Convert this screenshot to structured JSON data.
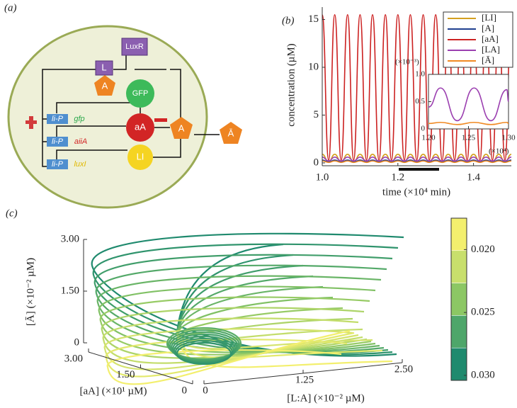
{
  "diagram": {
    "label": "(a)",
    "luxr": "LuxR",
    "l": "L",
    "a_inside": "A",
    "gfp_protein": "GFP",
    "aa": "aA",
    "li": "LI",
    "a_cell": "A",
    "a_bar": "Ā",
    "promoters": [
      "li-P",
      "li-P",
      "li-P"
    ],
    "genes": [
      "gfp",
      "aiiA",
      "luxI"
    ]
  },
  "chart_data": [
    {
      "type": "line",
      "label": "(b)",
      "xlabel": "time (×10⁴ min)",
      "ylabel": "concentration (µM)",
      "x": [
        1.0,
        1.017,
        1.033,
        1.05,
        1.067,
        1.083,
        1.1,
        1.117,
        1.133,
        1.15,
        1.167,
        1.183,
        1.2,
        1.217,
        1.233,
        1.25,
        1.267,
        1.283,
        1.3,
        1.317,
        1.333,
        1.35,
        1.367,
        1.383,
        1.4,
        1.417,
        1.433,
        1.45,
        1.467,
        1.483,
        1.5
      ],
      "xlim": [
        1.0,
        1.5
      ],
      "xticks": [
        {
          "value": 1.0,
          "label": "1.0"
        },
        1.2,
        1.4
      ],
      "ylim": [
        -0.3,
        16.3
      ],
      "yticks": [
        0,
        5,
        10,
        15
      ],
      "legend": "upper right",
      "series": [
        {
          "name": "[LI]",
          "color": "#d4a020",
          "values": [
            0.9,
            0.1,
            0.9,
            0.1,
            0.9,
            0.1,
            0.9,
            0.1,
            0.9,
            0.1,
            0.9,
            0.1,
            0.9,
            0.1,
            0.9,
            0.1,
            0.9,
            0.1,
            0.9,
            0.1,
            0.9,
            0.1,
            0.9,
            0.1,
            0.9,
            0.1,
            0.9,
            0.1,
            0.9,
            0.1,
            0.9
          ]
        },
        {
          "name": "[A]",
          "color": "#1f3f8f",
          "values": [
            0.3,
            0.1,
            0.3,
            0.1,
            0.3,
            0.1,
            0.3,
            0.1,
            0.3,
            0.1,
            0.3,
            0.1,
            0.3,
            0.1,
            0.3,
            0.1,
            0.3,
            0.1,
            0.3,
            0.1,
            0.3,
            0.1,
            0.3,
            0.1,
            0.3,
            0.1,
            0.3,
            0.1,
            0.3,
            0.1,
            0.3
          ]
        },
        {
          "name": "[aA]",
          "color": "#cc2222",
          "values": [
            15.5,
            0.3,
            15.5,
            0.3,
            15.5,
            0.3,
            15.5,
            0.3,
            15.5,
            0.3,
            15.5,
            0.3,
            15.5,
            0.3,
            15.5,
            0.3,
            15.5,
            0.3,
            15.5,
            0.3,
            15.5,
            0.3,
            15.5,
            0.3,
            15.5,
            0.3,
            15.5,
            0.3,
            15.5,
            0.3,
            15.5
          ]
        },
        {
          "name": "[LA]",
          "color": "#9b3fb0",
          "values": [
            0.6,
            0.2,
            0.6,
            0.2,
            0.6,
            0.2,
            0.6,
            0.2,
            0.6,
            0.2,
            0.6,
            0.2,
            0.6,
            0.2,
            0.6,
            0.2,
            0.6,
            0.2,
            0.6,
            0.2,
            0.6,
            0.2,
            0.6,
            0.2,
            0.6,
            0.2,
            0.6,
            0.2,
            0.6,
            0.2,
            0.6
          ]
        },
        {
          "name": "[Ā]",
          "color": "#f08a24",
          "values": [
            0.2,
            0.05,
            0.2,
            0.05,
            0.2,
            0.05,
            0.2,
            0.05,
            0.2,
            0.05,
            0.2,
            0.05,
            0.2,
            0.05,
            0.2,
            0.05,
            0.2,
            0.05,
            0.2,
            0.05,
            0.2,
            0.05,
            0.2,
            0.05,
            0.2,
            0.05,
            0.2,
            0.05,
            0.2,
            0.05,
            0.2
          ]
        }
      ]
    },
    {
      "type": "line",
      "xnote": "(×10⁴)",
      "ynote": "(×10⁻³)",
      "x": [
        1.2,
        1.215,
        1.236,
        1.257,
        1.278,
        1.298,
        1.3
      ],
      "xlim": [
        1.2,
        1.3
      ],
      "xticks": [
        {
          "value": 1.2,
          "label": "1.20"
        },
        1.25,
        {
          "value": 1.3,
          "label": "1.30"
        }
      ],
      "ylim": [
        0,
        1.0
      ],
      "yticks": [
        0,
        0.5,
        {
          "value": 1.0,
          "label": "1.0"
        }
      ],
      "series": [
        {
          "color": "#9b3fb0",
          "values": [
            0.4,
            0.75,
            0.15,
            0.75,
            0.15,
            0.72,
            0.5
          ]
        },
        {
          "color": "#f08a24",
          "values": [
            0.1,
            0.12,
            0.08,
            0.12,
            0.08,
            0.12,
            0.1
          ]
        }
      ]
    },
    {
      "type": "line3d",
      "label": "(c)",
      "xlabel": "[L:A] (×10⁻² µM)",
      "ylabel": "[aA] (×10¹ µM)",
      "zlabel": "[Ā] (×10⁻² µM)",
      "xlim": [
        0,
        2.5
      ],
      "xticks": [
        0,
        1.25,
        {
          "value": 2.5,
          "label": "2.50"
        }
      ],
      "ylim": [
        0,
        3
      ],
      "yticks": [
        0,
        {
          "value": 1.5,
          "label": "1.50"
        },
        {
          "value": 3,
          "label": "3.00"
        }
      ],
      "zlim": [
        0,
        3
      ],
      "zticks": [
        0,
        {
          "value": 1.5,
          "label": "1.50"
        },
        {
          "value": 3,
          "label": "3.00"
        }
      ],
      "colorbar_colors": [
        "#f3ef6e",
        "#c8df6c",
        "#8cc764",
        "#4ea66a",
        "#1f8a6e"
      ],
      "clim": [
        0.0175,
        0.0304
      ],
      "cticks": [
        {
          "value": 0.02,
          "label": "0.020"
        },
        {
          "value": 0.025,
          "label": "0.025"
        },
        {
          "value": 0.03,
          "label": "0.030"
        }
      ]
    }
  ]
}
